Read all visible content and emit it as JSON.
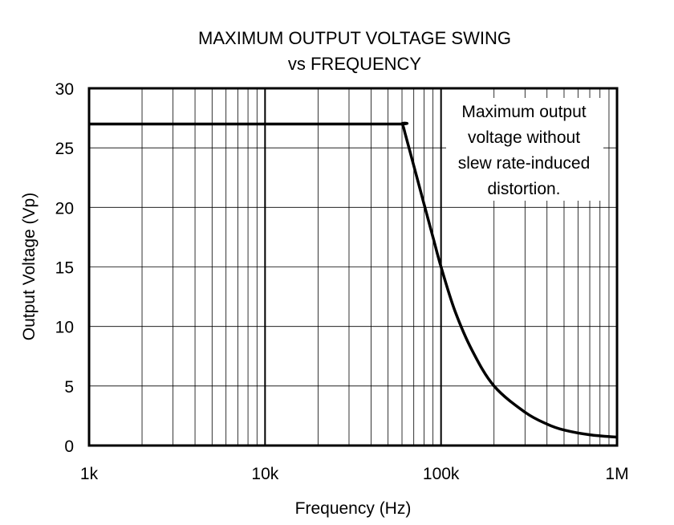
{
  "chart_data": {
    "type": "line",
    "title": "MAXIMUM OUTPUT VOLTAGE SWING",
    "subtitle": "vs FREQUENCY",
    "xlabel": "Frequency (Hz)",
    "ylabel": "Output Voltage (Vp)",
    "x_scale": "log",
    "xlim": [
      1000,
      1000000
    ],
    "ylim": [
      0,
      30
    ],
    "grid": true,
    "x_ticks": [
      {
        "value": 1000,
        "label": "1k"
      },
      {
        "value": 10000,
        "label": "10k"
      },
      {
        "value": 100000,
        "label": "100k"
      },
      {
        "value": 1000000,
        "label": "1M"
      }
    ],
    "y_ticks": [
      {
        "value": 0,
        "label": "0"
      },
      {
        "value": 5,
        "label": "5"
      },
      {
        "value": 10,
        "label": "10"
      },
      {
        "value": 15,
        "label": "15"
      },
      {
        "value": 20,
        "label": "20"
      },
      {
        "value": 25,
        "label": "25"
      },
      {
        "value": 30,
        "label": "30"
      }
    ],
    "series": [
      {
        "x": [
          1000,
          10000,
          55000,
          60000,
          63000,
          70000,
          80000,
          90000,
          100000,
          120000,
          150000,
          200000,
          300000,
          400000,
          500000,
          700000,
          1000000
        ],
        "y": [
          27,
          27,
          27,
          27,
          26,
          23.5,
          20.3,
          17.5,
          15,
          11.3,
          8,
          5,
          2.8,
          1.8,
          1.3,
          0.9,
          0.7
        ]
      }
    ],
    "annotation": [
      "Maximum output",
      "voltage without",
      "slew rate-induced",
      "distortion."
    ]
  }
}
